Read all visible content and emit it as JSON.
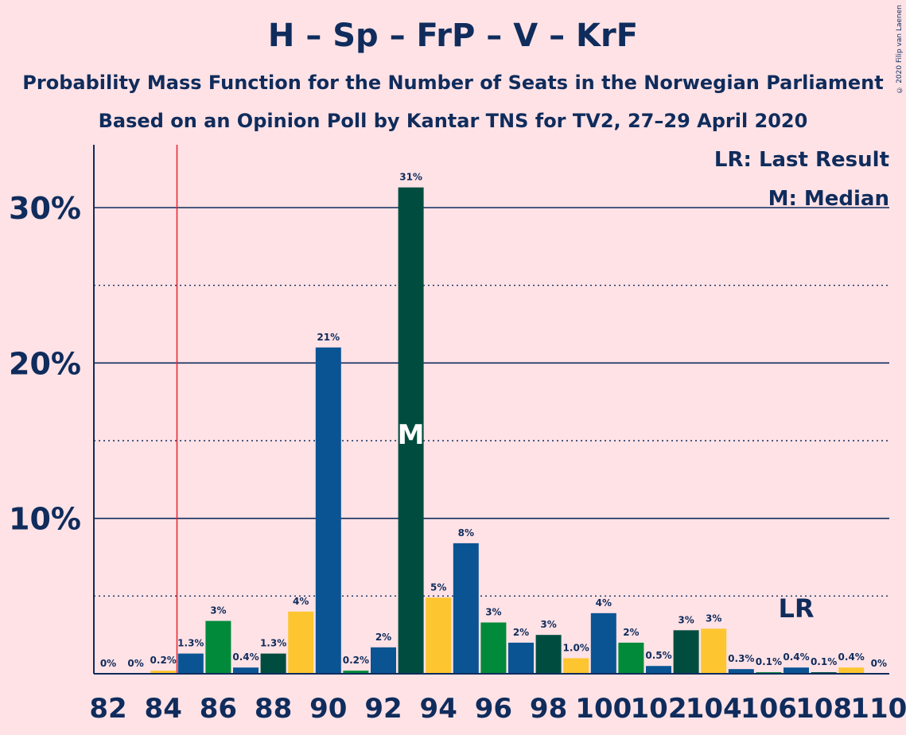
{
  "header": {
    "title": "H – Sp – FrP – V – KrF",
    "subtitle1": "Probability Mass Function for the Number of Seats in the Norwegian Parliament",
    "subtitle2": "Based on an Opinion Poll by Kantar TNS for TV2, 27–29 April 2020",
    "copyright": "© 2020 Filip van Laenen"
  },
  "legend": {
    "lr": "LR: Last Result",
    "m": "M: Median"
  },
  "colors": {
    "background": "#FFE2E6",
    "text": "#0F2C5C",
    "last_result_line": "#E8202A",
    "party_colors": [
      "#0A5494",
      "#008A3A",
      "#0C4A73",
      "#004D40",
      "#FDC530"
    ]
  },
  "chart_data": {
    "type": "bar",
    "x": [
      82,
      83,
      84,
      85,
      86,
      87,
      88,
      89,
      90,
      91,
      92,
      93,
      94,
      95,
      96,
      97,
      98,
      99,
      100,
      101,
      102,
      103,
      104,
      105,
      106,
      107,
      108,
      109,
      110
    ],
    "values": [
      0,
      0,
      0.2,
      1.3,
      3.4,
      0.4,
      1.3,
      4.0,
      21.0,
      0.2,
      1.7,
      31.3,
      4.9,
      8.4,
      3.3,
      2.0,
      2.5,
      1.0,
      3.9,
      2.0,
      0.5,
      2.8,
      2.9,
      0.3,
      0.1,
      0.4,
      0.1,
      0.4,
      0
    ],
    "labels": [
      "0%",
      "0%",
      "0.2%",
      "1.3%",
      "3%",
      "0.4%",
      "1.3%",
      "4%",
      "21%",
      "0.2%",
      "2%",
      "31%",
      "5%",
      "8%",
      "3%",
      "2%",
      "3%",
      "1.0%",
      "4%",
      "2%",
      "0.5%",
      "3%",
      "3%",
      "0.3%",
      "0.1%",
      "0.4%",
      "0.1%",
      "0.4%",
      "0%"
    ],
    "bar_colors": [
      "#008A3A",
      "#0A5494",
      "#FDC530",
      "#0A5494",
      "#008A3A",
      "#0A5494",
      "#004D40",
      "#FDC530",
      "#0A5494",
      "#008A3A",
      "#0A5494",
      "#004D40",
      "#FDC530",
      "#0A5494",
      "#008A3A",
      "#0A5494",
      "#004D40",
      "#FDC530",
      "#0A5494",
      "#008A3A",
      "#0A5494",
      "#004D40",
      "#FDC530",
      "#0A5494",
      "#008A3A",
      "#0A5494",
      "#004D40",
      "#FDC530",
      "#0A5494"
    ],
    "x_tick_labels": [
      "82",
      "84",
      "86",
      "88",
      "90",
      "92",
      "94",
      "96",
      "98",
      "100",
      "102",
      "104",
      "106",
      "108",
      "110"
    ],
    "y_tick_labels": [
      "10%",
      "20%",
      "30%"
    ],
    "ylim": [
      0,
      34
    ],
    "median_seat": 93,
    "median_marker": "M",
    "last_result_seat": 84.5,
    "last_result_bar_seat": 107,
    "last_result_marker": "LR"
  }
}
